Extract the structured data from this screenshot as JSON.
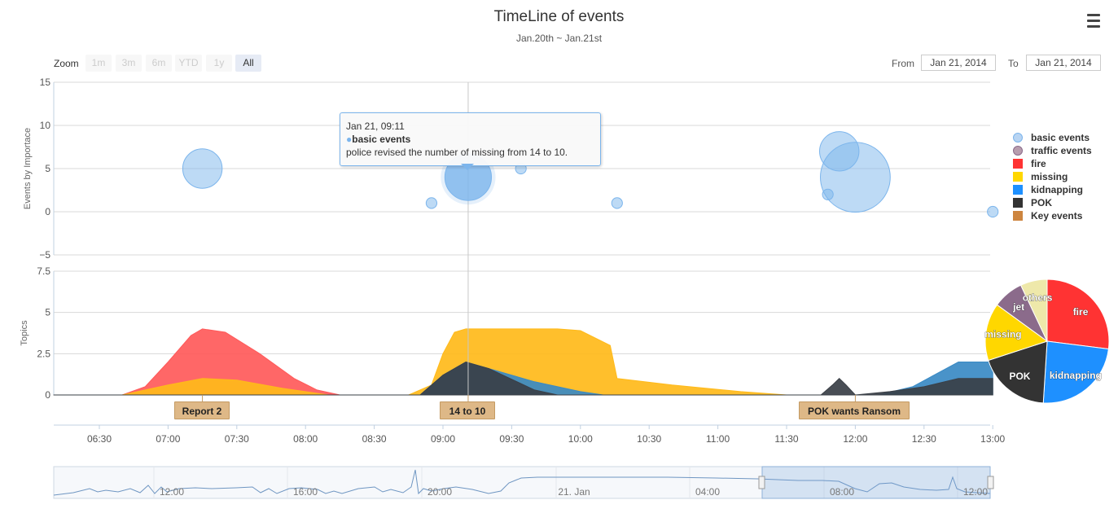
{
  "header": {
    "title": "TimeLine of events",
    "subtitle": "Jan.20th ~ Jan.21st"
  },
  "range_selector": {
    "zoom_label": "Zoom",
    "buttons": [
      {
        "label": "1m",
        "active": false
      },
      {
        "label": "3m",
        "active": false
      },
      {
        "label": "6m",
        "active": false
      },
      {
        "label": "YTD",
        "active": false
      },
      {
        "label": "1y",
        "active": false
      },
      {
        "label": "All",
        "active": true
      }
    ],
    "from_label": "From",
    "from_value": "Jan 21, 2014",
    "to_label": "To",
    "to_value": "Jan 21, 2014"
  },
  "menu": {
    "icon": "hamburger-menu-icon"
  },
  "tooltip": {
    "time": "Jan 21, 09:11",
    "series": "basic events",
    "text": "police revised the number of missing from 14 to 10."
  },
  "legend": [
    {
      "name": "basic events",
      "color": "#b8d4f2",
      "shape": "circle"
    },
    {
      "name": "traffic events",
      "color": "#b89dae",
      "shape": "circle"
    },
    {
      "name": "fire",
      "color": "#ff3333",
      "shape": "square"
    },
    {
      "name": "missing",
      "color": "#ffd700",
      "shape": "square"
    },
    {
      "name": "kidnapping",
      "color": "#1e90ff",
      "shape": "square"
    },
    {
      "name": "POK",
      "color": "#333333",
      "shape": "square"
    },
    {
      "name": "Key events",
      "color": "#cd853f",
      "shape": "square"
    }
  ],
  "flags": [
    {
      "label": "Report 2",
      "time": "07:15"
    },
    {
      "label": "14 to 10",
      "time": "09:11"
    },
    {
      "label": "POK wants Ransom",
      "time": "12:00"
    }
  ],
  "chart_data": [
    {
      "type": "bubble",
      "ylabel": "Events by Importace",
      "ylim": [
        -5,
        15
      ],
      "yticks": [
        "15",
        "10",
        "5",
        "0",
        "−5"
      ],
      "xlim": [
        "06:10",
        "13:00"
      ],
      "series": [
        {
          "name": "basic events",
          "color": "#7cb5ec",
          "points": [
            {
              "t": "07:15",
              "y": 5,
              "z": 2.2
            },
            {
              "t": "08:55",
              "y": 1,
              "z": 0.6
            },
            {
              "t": "09:11",
              "y": 4,
              "z": 2.6
            },
            {
              "t": "09:34",
              "y": 5,
              "z": 0.6
            },
            {
              "t": "10:16",
              "y": 1,
              "z": 0.6
            },
            {
              "t": "11:48",
              "y": 2,
              "z": 0.6
            },
            {
              "t": "11:53",
              "y": 7,
              "z": 2.2
            },
            {
              "t": "12:00",
              "y": 4,
              "z": 3.9
            },
            {
              "t": "13:00",
              "y": 0,
              "z": 0.6
            }
          ]
        }
      ]
    },
    {
      "type": "area",
      "ylabel": "Topics",
      "ylim": [
        0,
        7.5
      ],
      "yticks": [
        "7.5",
        "5",
        "2.5",
        "0"
      ],
      "xticks": [
        "06:30",
        "07:00",
        "07:30",
        "08:00",
        "08:30",
        "09:00",
        "09:30",
        "10:00",
        "10:30",
        "11:00",
        "11:30",
        "12:00",
        "12:30",
        "13:00"
      ],
      "series": [
        {
          "name": "fire",
          "color": "#ff5a5a",
          "points": [
            [
              "06:10",
              0
            ],
            [
              "06:40",
              0
            ],
            [
              "06:50",
              0.5
            ],
            [
              "07:00",
              2.0
            ],
            [
              "07:10",
              3.6
            ],
            [
              "07:15",
              4.0
            ],
            [
              "07:25",
              3.8
            ],
            [
              "07:40",
              2.5
            ],
            [
              "07:55",
              1.0
            ],
            [
              "08:05",
              0.3
            ],
            [
              "08:15",
              0
            ],
            [
              "13:00",
              0
            ]
          ]
        },
        {
          "name": "missing",
          "color": "#ffba1a",
          "points": [
            [
              "06:10",
              0
            ],
            [
              "06:40",
              0
            ],
            [
              "07:00",
              0.6
            ],
            [
              "07:15",
              1.0
            ],
            [
              "07:30",
              0.9
            ],
            [
              "07:50",
              0.4
            ],
            [
              "08:10",
              0
            ],
            [
              "08:45",
              0
            ],
            [
              "08:55",
              0.6
            ],
            [
              "09:00",
              2.5
            ],
            [
              "09:05",
              3.8
            ],
            [
              "09:10",
              4.0
            ],
            [
              "09:50",
              4.0
            ],
            [
              "10:00",
              3.9
            ],
            [
              "10:13",
              3.0
            ],
            [
              "10:16",
              1.0
            ],
            [
              "10:40",
              0.6
            ],
            [
              "11:10",
              0.2
            ],
            [
              "11:30",
              0
            ],
            [
              "13:00",
              0
            ]
          ]
        },
        {
          "name": "kidnapping",
          "color": "#3a8ac4",
          "points": [
            [
              "06:10",
              0
            ],
            [
              "08:50",
              0
            ],
            [
              "09:00",
              1.2
            ],
            [
              "09:10",
              2.0
            ],
            [
              "09:20",
              1.6
            ],
            [
              "09:40",
              0.8
            ],
            [
              "10:00",
              0.2
            ],
            [
              "10:10",
              0
            ],
            [
              "12:10",
              0
            ],
            [
              "12:25",
              0.5
            ],
            [
              "12:45",
              2.0
            ],
            [
              "13:00",
              2.0
            ]
          ]
        },
        {
          "name": "POK",
          "color": "#3a3f46",
          "points": [
            [
              "06:10",
              0
            ],
            [
              "08:50",
              0
            ],
            [
              "09:00",
              1.2
            ],
            [
              "09:10",
              2.0
            ],
            [
              "09:20",
              1.6
            ],
            [
              "09:40",
              0.3
            ],
            [
              "09:50",
              0
            ],
            [
              "11:45",
              0
            ],
            [
              "11:50",
              0.6
            ],
            [
              "11:53",
              1.0
            ],
            [
              "11:56",
              0.6
            ],
            [
              "12:00",
              0
            ],
            [
              "12:15",
              0.2
            ],
            [
              "12:30",
              0.5
            ],
            [
              "12:45",
              1.0
            ],
            [
              "13:00",
              1.0
            ]
          ]
        }
      ]
    },
    {
      "type": "pie",
      "slices": [
        {
          "name": "fire",
          "value": 27,
          "color": "#ff3333"
        },
        {
          "name": "kidnapping",
          "value": 24,
          "color": "#1e90ff"
        },
        {
          "name": "POK",
          "value": 19,
          "color": "#333333"
        },
        {
          "name": "missing",
          "value": 15,
          "color": "#ffd700"
        },
        {
          "name": "jet",
          "value": 8,
          "color": "#8b6b8b"
        },
        {
          "name": "others",
          "value": 7,
          "color": "#eee8aa"
        }
      ]
    },
    {
      "type": "navigator",
      "xticks": [
        "12:00",
        "16:00",
        "20:00",
        "21. Jan",
        "04:00",
        "08:00",
        "12:00"
      ],
      "selected_range": [
        "06:10",
        "13:00"
      ]
    }
  ]
}
